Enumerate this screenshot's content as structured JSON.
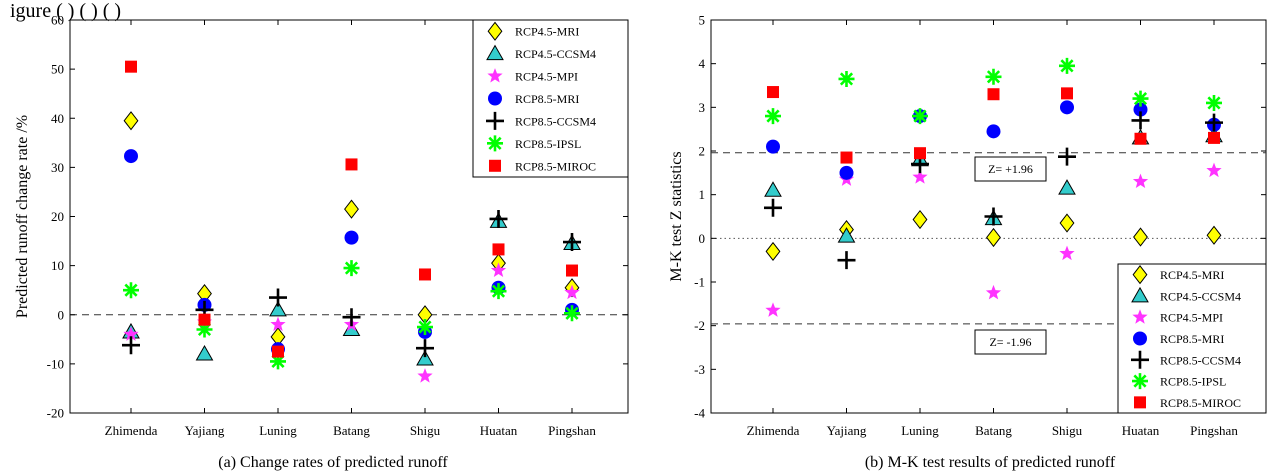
{
  "header_fragment": "igure ( )  ( )  ( )    ",
  "chart_data": [
    {
      "id": "a",
      "type": "scatter",
      "caption": "(a) Change rates of predicted runoff",
      "ylabel": "Predicted runoff change rate /%",
      "xlabel": "",
      "categories": [
        "Zhimenda",
        "Yajiang",
        "Luning",
        "Batang",
        "Shigu",
        "Huatan",
        "Pingshan"
      ],
      "ylim": [
        -20,
        60
      ],
      "yticks": [
        -20,
        -10,
        0,
        10,
        20,
        30,
        40,
        50,
        60
      ],
      "grid": false,
      "legend_position": "top-right",
      "reference_lines": [
        {
          "y": 0,
          "style": "dashed",
          "label": ""
        }
      ],
      "series": [
        {
          "name": "RCP4.5-MRI",
          "marker": "diamond",
          "color": "#ffff00",
          "values": [
            39.5,
            4.3,
            -4.5,
            21.5,
            0.0,
            10.5,
            5.5
          ]
        },
        {
          "name": "RCP4.5-CCSM4",
          "marker": "triangle",
          "color": "#33cccc",
          "values": [
            -3.5,
            -8.0,
            1.0,
            -3.0,
            -9.0,
            19.0,
            14.5
          ]
        },
        {
          "name": "RCP4.5-MPI",
          "marker": "star",
          "color": "#ff33ff",
          "values": [
            -4.0,
            -1.5,
            -2.0,
            -2.0,
            -12.5,
            9.0,
            4.5
          ]
        },
        {
          "name": "RCP8.5-MRI",
          "marker": "circle",
          "color": "#0000ff",
          "values": [
            32.3,
            2.0,
            -7.0,
            15.7,
            -3.5,
            5.5,
            1.0
          ]
        },
        {
          "name": "RCP8.5-CCSM4",
          "marker": "plus",
          "color": "#000000",
          "values": [
            -6.2,
            1.0,
            3.5,
            -0.5,
            -6.8,
            19.5,
            14.8
          ]
        },
        {
          "name": "RCP8.5-IPSL",
          "marker": "asterisk",
          "color": "#00ff00",
          "values": [
            5.0,
            -3.0,
            -9.5,
            9.5,
            -2.5,
            4.8,
            0.3
          ]
        },
        {
          "name": "RCP8.5-MIROC",
          "marker": "square",
          "color": "#ff0000",
          "values": [
            50.5,
            -1.0,
            -7.5,
            30.6,
            8.2,
            13.3,
            9.0
          ]
        }
      ]
    },
    {
      "id": "b",
      "type": "scatter",
      "caption": "(b) M-K test results of predicted runoff",
      "ylabel": "M-K test Z statistics",
      "xlabel": "",
      "categories": [
        "Zhimenda",
        "Yajiang",
        "Luning",
        "Batang",
        "Shigu",
        "Huatan",
        "Pingshan"
      ],
      "ylim": [
        -4,
        5
      ],
      "yticks": [
        -4,
        -3,
        -2,
        -1,
        0,
        1,
        2,
        3,
        4,
        5
      ],
      "grid": false,
      "legend_position": "bottom-right",
      "reference_lines": [
        {
          "y": 1.96,
          "style": "dashed",
          "label": "Z= +1.96"
        },
        {
          "y": 0,
          "style": "dotted",
          "label": ""
        },
        {
          "y": -1.96,
          "style": "dashed",
          "label": "Z= -1.96"
        }
      ],
      "series": [
        {
          "name": "RCP4.5-MRI",
          "marker": "diamond",
          "color": "#ffff00",
          "values": [
            -0.3,
            0.2,
            0.43,
            0.02,
            0.35,
            0.03,
            0.07
          ]
        },
        {
          "name": "RCP4.5-CCSM4",
          "marker": "triangle",
          "color": "#33cccc",
          "values": [
            1.1,
            0.05,
            1.8,
            0.45,
            1.15,
            2.3,
            2.35
          ]
        },
        {
          "name": "RCP4.5-MPI",
          "marker": "star",
          "color": "#ff33ff",
          "values": [
            -1.65,
            1.35,
            1.4,
            -1.25,
            -0.35,
            1.3,
            1.55
          ]
        },
        {
          "name": "RCP8.5-MRI",
          "marker": "circle",
          "color": "#0000ff",
          "values": [
            2.1,
            1.5,
            2.8,
            2.45,
            3.0,
            2.95,
            2.6
          ]
        },
        {
          "name": "RCP8.5-CCSM4",
          "marker": "plus",
          "color": "#000000",
          "values": [
            0.7,
            -0.5,
            1.7,
            0.5,
            1.87,
            2.7,
            2.65
          ]
        },
        {
          "name": "RCP8.5-IPSL",
          "marker": "asterisk",
          "color": "#00ff00",
          "values": [
            2.8,
            3.65,
            2.8,
            3.7,
            3.95,
            3.2,
            3.1
          ]
        },
        {
          "name": "RCP8.5-MIROC",
          "marker": "square",
          "color": "#ff0000",
          "values": [
            3.35,
            1.85,
            1.95,
            3.3,
            3.32,
            2.28,
            2.3
          ]
        }
      ]
    }
  ]
}
